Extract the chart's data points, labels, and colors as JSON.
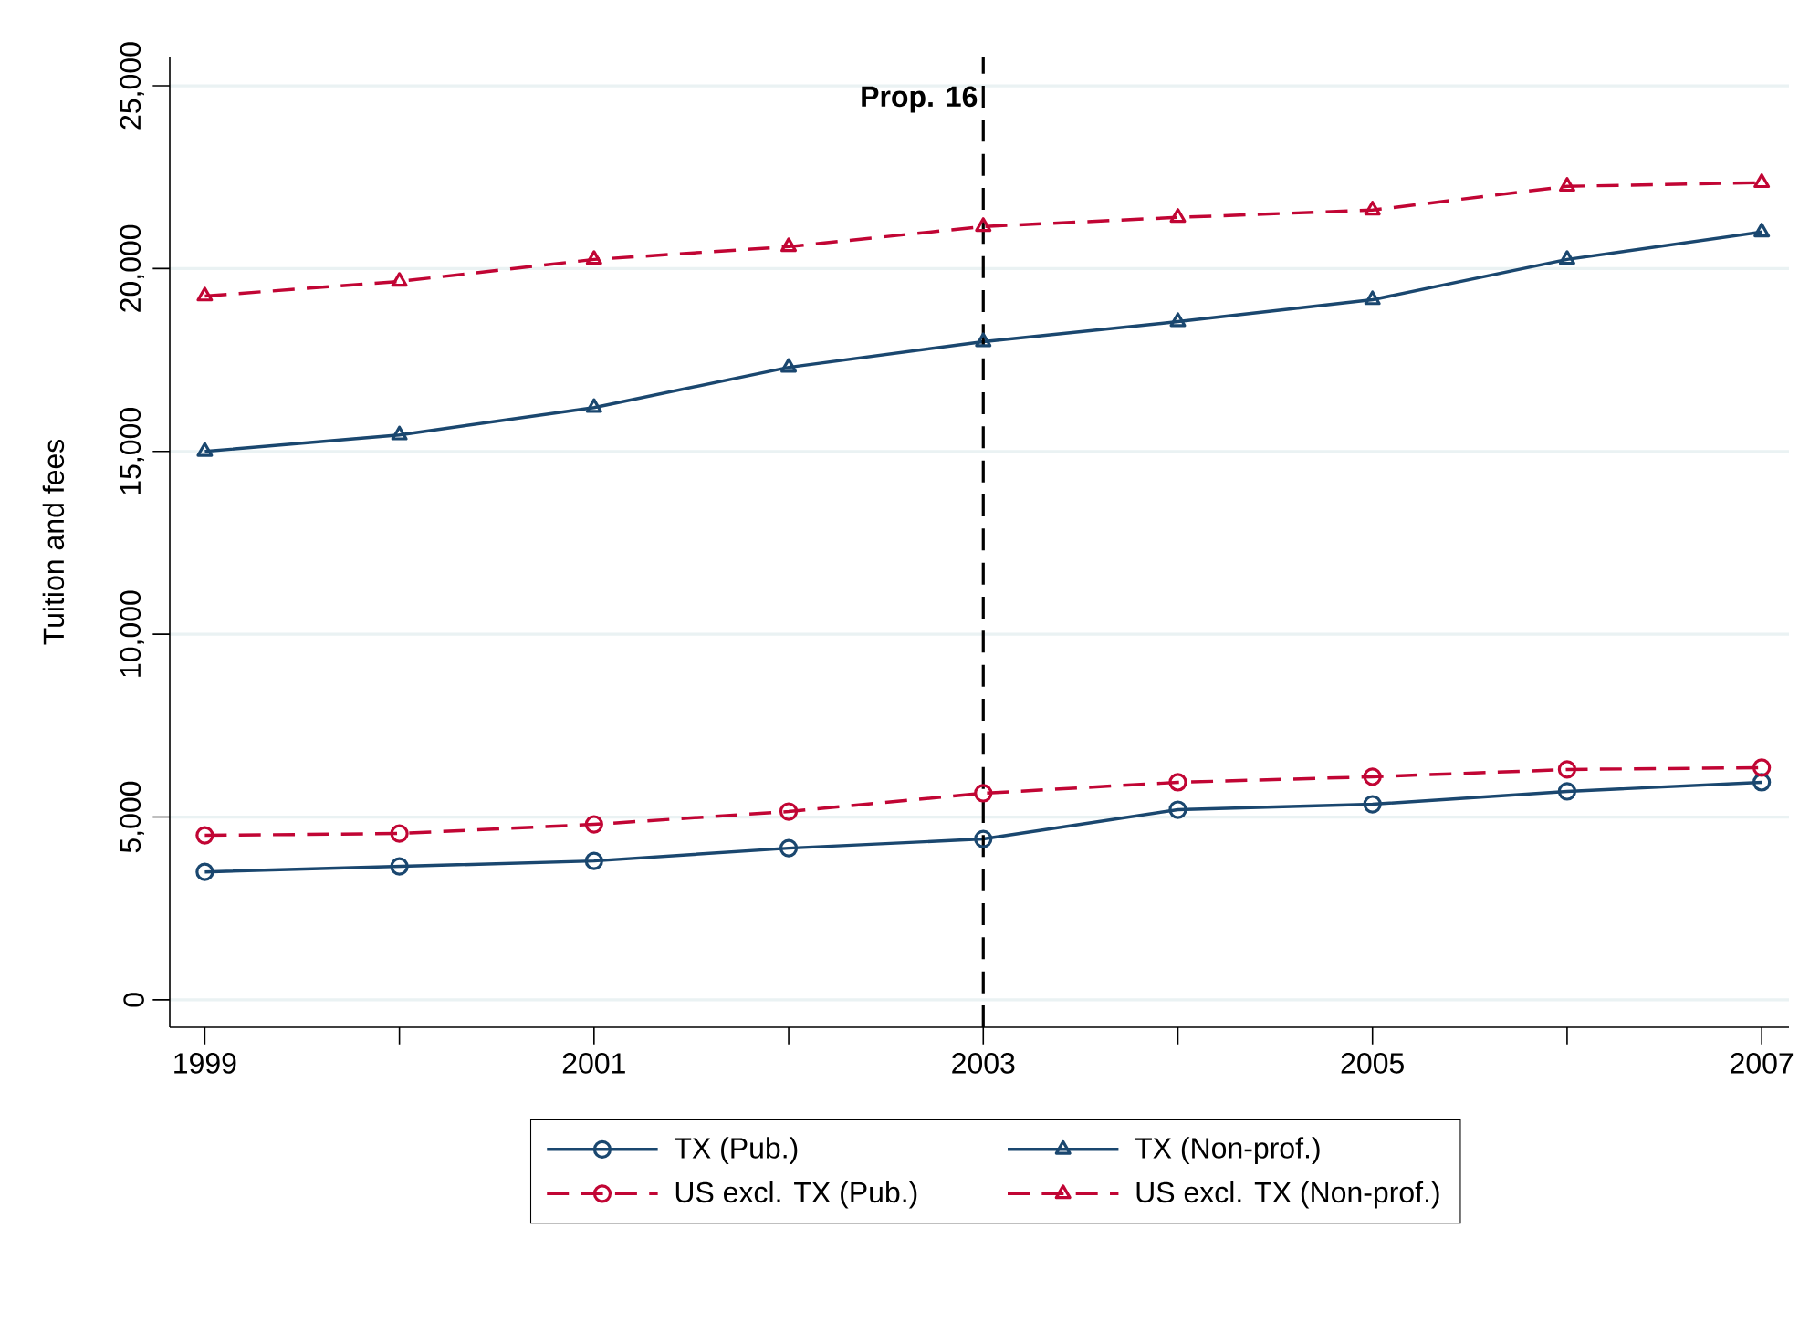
{
  "chart_data": {
    "type": "line",
    "ylabel": "Tuition and fees",
    "x": [
      1999,
      2000,
      2001,
      2002,
      2003,
      2004,
      2005,
      2006,
      2007
    ],
    "xlim": [
      1998.82,
      2007.14
    ],
    "ylim": [
      -750,
      25800
    ],
    "xticks": [
      1999,
      {
        "value": 2000,
        "label": null
      },
      2001,
      {
        "value": 2002,
        "label": null
      },
      2003,
      {
        "value": 2004,
        "label": null
      },
      2005,
      {
        "value": 2006,
        "label": null
      },
      2007
    ],
    "yticks": [
      0,
      {
        "value": 5000,
        "label": "5,000"
      },
      {
        "value": 10000,
        "label": "10,000"
      },
      {
        "value": 15000,
        "label": "15,000"
      },
      {
        "value": 20000,
        "label": "20,000"
      },
      {
        "value": 25000,
        "label": "25,000"
      }
    ],
    "grid": "y",
    "legend": "bottom",
    "series": [
      {
        "name": "TX (Pub.)",
        "color": "#1a476f",
        "marker": "circle",
        "line_style": "solid",
        "values": [
          3500,
          3650,
          3800,
          4150,
          4400,
          5200,
          5350,
          5700,
          5950
        ]
      },
      {
        "name": "TX (Non-prof.)",
        "color": "#1a476f",
        "marker": "triangle",
        "line_style": "solid",
        "values": [
          15000,
          15450,
          16200,
          17300,
          18000,
          18550,
          19150,
          20250,
          21000
        ]
      },
      {
        "name": "US excl. TX (Pub.)",
        "color": "#c10534",
        "marker": "circle",
        "line_style": "dashed",
        "values": [
          4500,
          4550,
          4800,
          5150,
          5650,
          5950,
          6100,
          6300,
          6350
        ]
      },
      {
        "name": "US excl. TX (Non-prof.)",
        "color": "#c10534",
        "marker": "triangle",
        "line_style": "dashed",
        "values": [
          19250,
          19650,
          20250,
          20600,
          21150,
          21400,
          21600,
          22250,
          22350
        ]
      }
    ],
    "ref_lines": [
      {
        "axis": "x",
        "value": 2003,
        "label": "Prop. 16",
        "color": "#000000",
        "line_style": "dashed"
      }
    ]
  }
}
